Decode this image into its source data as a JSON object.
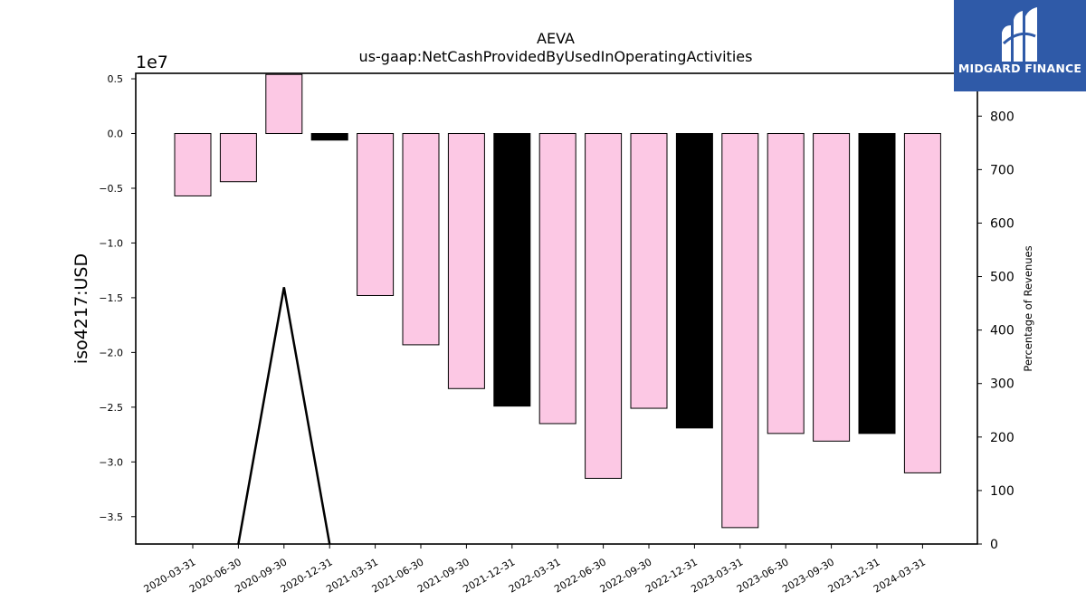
{
  "chart_data": {
    "type": "bar",
    "title": "AEVA",
    "subtitle": "us-gaap:NetCashProvidedByUsedInOperatingActivities",
    "ylabel": "iso4217:USD",
    "y_offset_label": "1e7",
    "y2label": "Percentage of Revenues",
    "ylim": [
      -37500000,
      5500000
    ],
    "y2lim": [
      0,
      880
    ],
    "yticks": [
      "0.5",
      "0.0",
      "−0.5",
      "−1.0",
      "−1.5",
      "−2.0",
      "−2.5",
      "−3.0",
      "−3.5"
    ],
    "ytick_values": [
      5000000,
      0,
      -5000000,
      -10000000,
      -15000000,
      -20000000,
      -25000000,
      -30000000,
      -35000000
    ],
    "y2ticks": [
      "0",
      "100",
      "200",
      "300",
      "400",
      "500",
      "600",
      "700",
      "800"
    ],
    "y2tick_values": [
      0,
      100,
      200,
      300,
      400,
      500,
      600,
      700,
      800
    ],
    "categories": [
      "2020-03-31",
      "2020-06-30",
      "2020-09-30",
      "2020-12-31",
      "2021-03-31",
      "2021-06-30",
      "2021-09-30",
      "2021-12-31",
      "2022-03-31",
      "2022-06-30",
      "2022-09-30",
      "2022-12-31",
      "2023-03-31",
      "2023-06-30",
      "2023-09-30",
      "2023-12-31",
      "2024-03-31"
    ],
    "series": [
      {
        "values": [
          -5700000,
          -4400000,
          5400000,
          -600000,
          -14800000,
          -19300000,
          -23300000,
          -24900000,
          -26500000,
          -31500000,
          -25100000,
          -26900000,
          -36000000,
          -27400000,
          -28100000,
          -27400000,
          -31000000
        ]
      },
      {
        "type": "line",
        "axis": "right",
        "values": [
          null,
          0,
          480,
          0,
          null,
          null,
          null,
          null,
          null,
          null,
          null,
          null,
          null,
          null,
          null,
          null,
          null
        ]
      }
    ],
    "bar_colors": [
      "#fcc8e4",
      "#fcc8e4",
      "#fcc8e4",
      "#000000",
      "#fcc8e4",
      "#fcc8e4",
      "#fcc8e4",
      "#000000",
      "#fcc8e4",
      "#fcc8e4",
      "#fcc8e4",
      "#000000",
      "#fcc8e4",
      "#fcc8e4",
      "#fcc8e4",
      "#000000",
      "#fcc8e4"
    ],
    "colors": {
      "pink": "#fcc8e4",
      "black": "#000000",
      "line": "#000000"
    },
    "grid": false,
    "legend": "none"
  },
  "logo": {
    "text": "MIDGARD FINANCE",
    "background": "#2f5aa8"
  }
}
